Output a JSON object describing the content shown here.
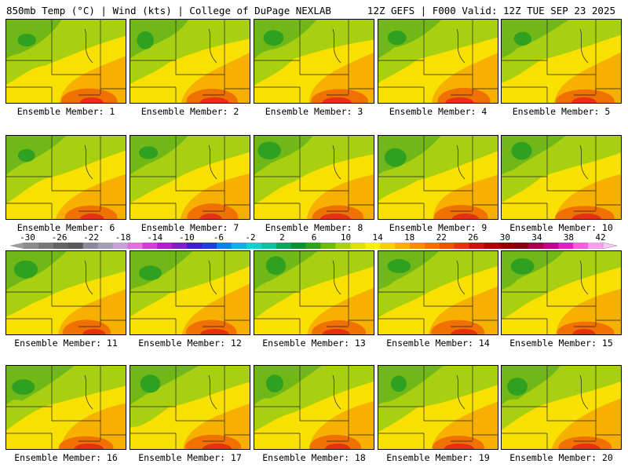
{
  "header": {
    "left": "850mb Temp (°C) | Wind (kts) | College of DuPage NEXLAB",
    "right": "12Z GEFS | F000 Valid: 12Z TUE SEP 23 2025"
  },
  "panels": [
    {
      "label": "Ensemble Member: 1"
    },
    {
      "label": "Ensemble Member: 2"
    },
    {
      "label": "Ensemble Member: 3"
    },
    {
      "label": "Ensemble Member: 4"
    },
    {
      "label": "Ensemble Member: 5"
    },
    {
      "label": "Ensemble Member: 6"
    },
    {
      "label": "Ensemble Member: 7"
    },
    {
      "label": "Ensemble Member: 8"
    },
    {
      "label": "Ensemble Member: 9"
    },
    {
      "label": "Ensemble Member: 10"
    },
    {
      "label": "Ensemble Member: 11"
    },
    {
      "label": "Ensemble Member: 12"
    },
    {
      "label": "Ensemble Member: 13"
    },
    {
      "label": "Ensemble Member: 14"
    },
    {
      "label": "Ensemble Member: 15"
    },
    {
      "label": "Ensemble Member: 16"
    },
    {
      "label": "Ensemble Member: 17"
    },
    {
      "label": "Ensemble Member: 18"
    },
    {
      "label": "Ensemble Member: 19"
    },
    {
      "label": "Ensemble Member: 20"
    }
  ],
  "colorbar": {
    "ticks": [
      "-30",
      "-26",
      "-22",
      "-18",
      "-14",
      "-10",
      "-6",
      "-2",
      "2",
      "6",
      "10",
      "14",
      "18",
      "22",
      "26",
      "30",
      "34",
      "38",
      "42"
    ],
    "colors": [
      "#8c8c8c",
      "#787878",
      "#646464",
      "#5a5a5a",
      "#8a8a9a",
      "#a0a0b4",
      "#c8a0d8",
      "#e070e0",
      "#d040d0",
      "#b020c8",
      "#8020c0",
      "#4020c0",
      "#2040d0",
      "#1080e0",
      "#10b0e0",
      "#10d0d0",
      "#10c0a0",
      "#10a060",
      "#109030",
      "#30a020",
      "#70b818",
      "#a8d010",
      "#e0e000",
      "#f8f000",
      "#f8d000",
      "#f8b000",
      "#f09000",
      "#f07000",
      "#f05000",
      "#e83010",
      "#d01010",
      "#b00000",
      "#900000",
      "#800010",
      "#a00050",
      "#c00090",
      "#e020c0",
      "#f060e0",
      "#f8a0f0"
    ]
  }
}
